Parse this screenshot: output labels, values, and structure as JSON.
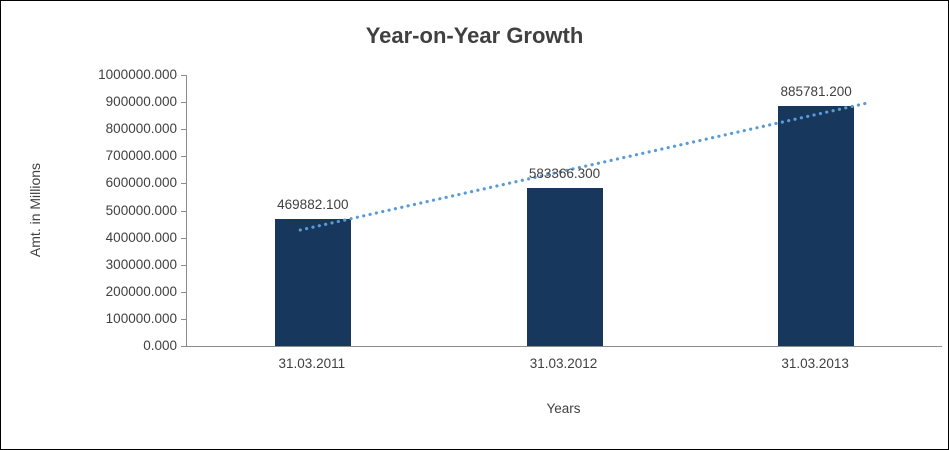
{
  "chart_data": {
    "type": "bar",
    "title": "Year-on-Year Growth",
    "xlabel": "Years",
    "ylabel": "Amt. in Millions",
    "categories": [
      "31.03.2011",
      "31.03.2012",
      "31.03.2013"
    ],
    "values": [
      469882.1,
      583366.3,
      885781.2
    ],
    "data_labels": [
      "469882.100",
      "583366.300",
      "885781.200"
    ],
    "ylim": [
      0,
      1000000
    ],
    "ytick_interval": 100000,
    "ytick_labels": [
      "1000000.000",
      "900000.000",
      "800000.000",
      "700000.000",
      "600000.000",
      "500000.000",
      "400000.000",
      "300000.000",
      "200000.000",
      "100000.000",
      "0.000"
    ],
    "grid": false,
    "legend": "none",
    "trendline": {
      "type": "linear",
      "style": "dotted",
      "color": "#5B9BD5"
    },
    "colors": {
      "bar": "#17375D",
      "trendline": "#5B9BD5",
      "text": "#404040",
      "axis": "#8C8C8C",
      "background": "#FFFFFF",
      "frame_border": "#000000"
    }
  }
}
